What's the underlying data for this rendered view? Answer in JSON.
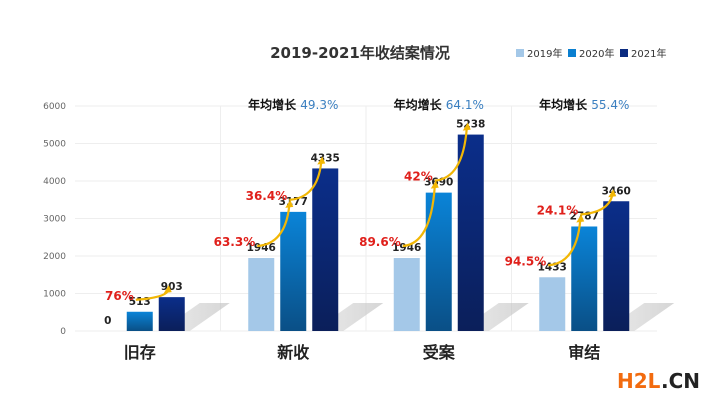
{
  "chart_data": {
    "type": "bar",
    "title": "2019-2021年收结案情况",
    "categories": [
      "旧存",
      "新收",
      "受案",
      "审结"
    ],
    "series": [
      {
        "name": "2019年",
        "color": "#a4c8e8",
        "values": [
          0,
          1946,
          1946,
          1433
        ]
      },
      {
        "name": "2020年",
        "color": "#0a7fd0",
        "values": [
          513,
          3177,
          3690,
          2787
        ]
      },
      {
        "name": "2021年",
        "color": "#0b2b80",
        "values": [
          903,
          4335,
          5238,
          3460
        ]
      }
    ],
    "value_labels": [
      [
        "0",
        "513",
        "903"
      ],
      [
        "1946",
        "3177",
        "4335"
      ],
      [
        "1946",
        "3690",
        "5238"
      ],
      [
        "1433",
        "2787",
        "3460"
      ]
    ],
    "growth_labels": [
      [
        null,
        "76%"
      ],
      [
        "63.3%",
        "36.4%"
      ],
      [
        "89.6%",
        "42%"
      ],
      [
        "94.5%",
        "24.1%"
      ]
    ],
    "annual_growth": [
      null,
      {
        "label": "年均增长",
        "value": "49.3%"
      },
      {
        "label": "年均增长",
        "value": "64.1%"
      },
      {
        "label": "年均增长",
        "value": "55.4%"
      }
    ],
    "yticks": [
      "0",
      "1000",
      "2000",
      "3000",
      "4000",
      "5000",
      "6000"
    ],
    "ylim": [
      0,
      6000
    ],
    "grid": true,
    "legend": "top-right",
    "xlabel": "",
    "ylabel": ""
  },
  "watermark": {
    "part1": "H2L",
    "part2": ".CN"
  }
}
